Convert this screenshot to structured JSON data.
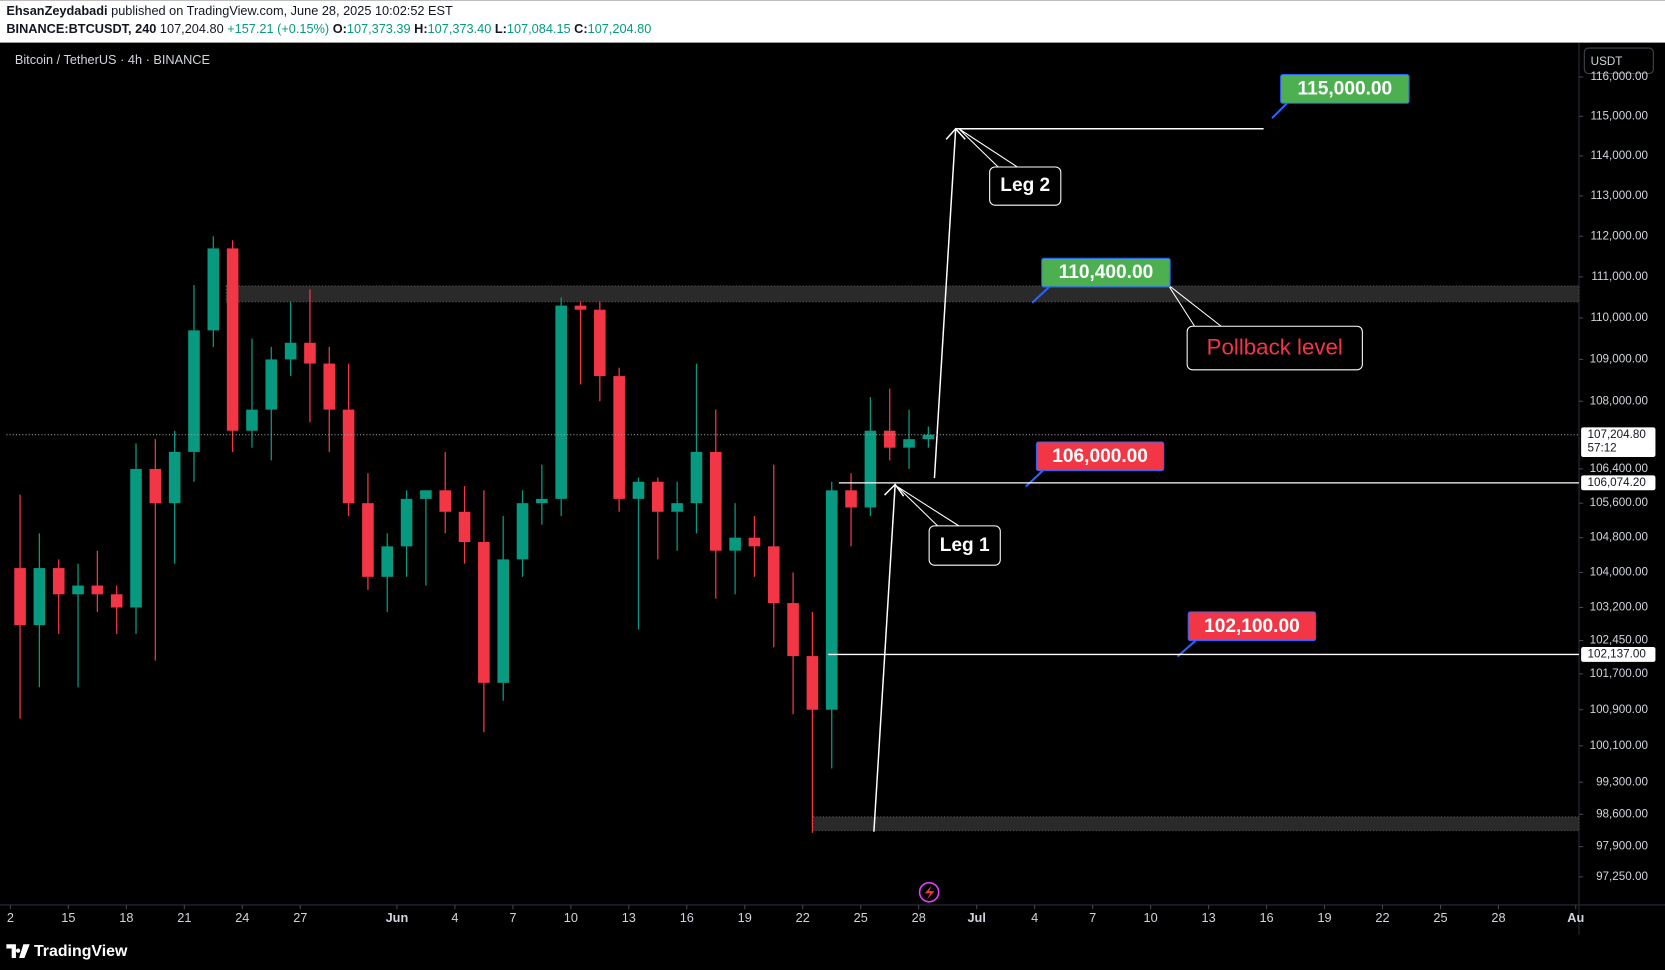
{
  "header": {
    "author": "EhsanZeydabadi",
    "published": "published on TradingView.com, June 28, 2025 10:02:52 EST",
    "symbol": "BINANCE:BTCUSDT, 240",
    "last": "107,204.80",
    "change": "+157.21 (+0.15%)",
    "ohlc": [
      {
        "label": "O:",
        "value": "107,373.39"
      },
      {
        "label": "H:",
        "value": "107,373.40"
      },
      {
        "label": "L:",
        "value": "107,084.15"
      },
      {
        "label": "C:",
        "value": "107,204.80"
      }
    ]
  },
  "chart_data": {
    "type": "candlestick",
    "title": "Bitcoin / TetherUS · 4h · BINANCE",
    "currency": "USDT",
    "log_scale": true,
    "up_color": "#089981",
    "down_color": "#f23645",
    "x": [
      "2025-05-12",
      "2025-05-13",
      "2025-05-14",
      "2025-05-15",
      "2025-05-16",
      "2025-05-17",
      "2025-05-18",
      "2025-05-19",
      "2025-05-20",
      "2025-05-21",
      "2025-05-22",
      "2025-05-23",
      "2025-05-24",
      "2025-05-25",
      "2025-05-26",
      "2025-05-27",
      "2025-05-28",
      "2025-05-29",
      "2025-05-30",
      "2025-05-31",
      "2025-06-01",
      "2025-06-02",
      "2025-06-03",
      "2025-06-04",
      "2025-06-05",
      "2025-06-06",
      "2025-06-07",
      "2025-06-08",
      "2025-06-09",
      "2025-06-10",
      "2025-06-11",
      "2025-06-12",
      "2025-06-13",
      "2025-06-14",
      "2025-06-15",
      "2025-06-16",
      "2025-06-17",
      "2025-06-18",
      "2025-06-19",
      "2025-06-20",
      "2025-06-21",
      "2025-06-22",
      "2025-06-23",
      "2025-06-24",
      "2025-06-25",
      "2025-06-26",
      "2025-06-27",
      "2025-06-28"
    ],
    "open": [
      104100,
      102800,
      104100,
      103500,
      103700,
      103500,
      103200,
      106400,
      105600,
      106800,
      109700,
      111700,
      107300,
      107800,
      109000,
      109400,
      108900,
      107800,
      105600,
      103900,
      104600,
      105700,
      105900,
      105400,
      104700,
      101500,
      104300,
      105600,
      105700,
      110300,
      110200,
      108600,
      105700,
      106100,
      105400,
      105600,
      106800,
      104500,
      104800,
      104600,
      103300,
      102100,
      100900,
      105900,
      105500,
      107300,
      106900,
      107100
    ],
    "high": [
      105800,
      104900,
      104300,
      104200,
      104500,
      103700,
      107000,
      107100,
      107300,
      110800,
      112000,
      111900,
      109500,
      109300,
      110400,
      110700,
      109300,
      108900,
      106300,
      104900,
      105900,
      105900,
      106800,
      106000,
      105900,
      105300,
      105900,
      106500,
      110500,
      110400,
      110400,
      108800,
      106200,
      106200,
      106100,
      108900,
      107800,
      105600,
      105300,
      106500,
      104000,
      103100,
      106100,
      106300,
      108100,
      108300,
      107800,
      107400
    ],
    "low": [
      100700,
      101400,
      102600,
      101400,
      103100,
      102600,
      102600,
      102000,
      104200,
      106100,
      109300,
      106800,
      106900,
      106600,
      108600,
      107500,
      106800,
      105300,
      103600,
      103100,
      103900,
      103700,
      104900,
      104200,
      100400,
      101100,
      103900,
      105100,
      105300,
      108400,
      108000,
      105400,
      102700,
      104300,
      104500,
      104900,
      103400,
      103500,
      103900,
      102300,
      100800,
      98200,
      99600,
      104600,
      105300,
      106600,
      106400,
      106900
    ],
    "close": [
      102800,
      104100,
      103500,
      103700,
      103500,
      103200,
      106400,
      105600,
      106800,
      109700,
      111700,
      107300,
      107800,
      109000,
      109400,
      108900,
      107800,
      105600,
      103900,
      104600,
      105700,
      105900,
      105400,
      104700,
      101500,
      104300,
      105600,
      105700,
      110300,
      110200,
      108600,
      105700,
      106100,
      105400,
      105600,
      106800,
      104500,
      104800,
      104600,
      103300,
      102100,
      100900,
      105900,
      105500,
      107300,
      106900,
      107100,
      107204.8
    ],
    "xlim": [
      "2025-05-11T19:00Z",
      "2025-08-01T04:00Z"
    ],
    "xticks": [
      {
        "value": "2025-05-12",
        "label": "2"
      },
      {
        "value": "2025-05-15",
        "label": "15"
      },
      {
        "value": "2025-05-18",
        "label": "18"
      },
      {
        "value": "2025-05-21",
        "label": "21"
      },
      {
        "value": "2025-05-24",
        "label": "24"
      },
      {
        "value": "2025-05-27",
        "label": "27"
      },
      {
        "value": "2025-06-01",
        "label": "Jun"
      },
      {
        "value": "2025-06-04",
        "label": "4"
      },
      {
        "value": "2025-06-07",
        "label": "7"
      },
      {
        "value": "2025-06-10",
        "label": "10"
      },
      {
        "value": "2025-06-13",
        "label": "13"
      },
      {
        "value": "2025-06-16",
        "label": "16"
      },
      {
        "value": "2025-06-19",
        "label": "19"
      },
      {
        "value": "2025-06-22",
        "label": "22"
      },
      {
        "value": "2025-06-25",
        "label": "25"
      },
      {
        "value": "2025-06-28",
        "label": "28"
      },
      {
        "value": "2025-07-01",
        "label": "Jul"
      },
      {
        "value": "2025-07-04",
        "label": "4"
      },
      {
        "value": "2025-07-07",
        "label": "7"
      },
      {
        "value": "2025-07-10",
        "label": "10"
      },
      {
        "value": "2025-07-13",
        "label": "13"
      },
      {
        "value": "2025-07-16",
        "label": "16"
      },
      {
        "value": "2025-07-19",
        "label": "19"
      },
      {
        "value": "2025-07-22",
        "label": "22"
      },
      {
        "value": "2025-07-25",
        "label": "25"
      },
      {
        "value": "2025-07-28",
        "label": "28"
      },
      {
        "value": "2025-08-01",
        "label": "Au"
      }
    ],
    "ylim": [
      96650,
      116880
    ],
    "yticks": [
      {
        "value": 116000,
        "label": "116,000.00"
      },
      {
        "value": 115000,
        "label": "115,000.00"
      },
      {
        "value": 114000,
        "label": "114,000.00"
      },
      {
        "value": 113000,
        "label": "113,000.00"
      },
      {
        "value": 112000,
        "label": "112,000.00"
      },
      {
        "value": 111000,
        "label": "111,000.00"
      },
      {
        "value": 110000,
        "label": "110,000.00"
      },
      {
        "value": 109000,
        "label": "109,000.00"
      },
      {
        "value": 108000,
        "label": "108,000.00"
      },
      {
        "value": 106400,
        "label": "106,400.00"
      },
      {
        "value": 105600,
        "label": "105,600.00"
      },
      {
        "value": 104800,
        "label": "104,800.00"
      },
      {
        "value": 104000,
        "label": "104,000.00"
      },
      {
        "value": 103200,
        "label": "103,200.00"
      },
      {
        "value": 102450,
        "label": "102,450.00"
      },
      {
        "value": 101700,
        "label": "101,700.00"
      },
      {
        "value": 100900,
        "label": "100,900.00"
      },
      {
        "value": 100100,
        "label": "100,100.00"
      },
      {
        "value": 99300,
        "label": "99,300.00"
      },
      {
        "value": 98600,
        "label": "98,600.00"
      },
      {
        "value": 97900,
        "label": "97,900.00"
      },
      {
        "value": 97250,
        "label": "97,250.00"
      }
    ],
    "price_badges": [
      {
        "value": 107204.8,
        "label": "107,204.80",
        "countdown": "57:12"
      },
      {
        "value": 106074.2,
        "label": "106,074.20"
      },
      {
        "value": 102137,
        "label": "102,137.00"
      }
    ],
    "annotations": {
      "target_115": "115,000.00",
      "target_110": "110,400.00",
      "level_106": "106,000.00",
      "level_102": "102,100.00",
      "leg1": "Leg 1",
      "leg2": "Leg 2",
      "pullback": "Pollback level"
    }
  },
  "footer": {
    "brand": "TradingView"
  }
}
